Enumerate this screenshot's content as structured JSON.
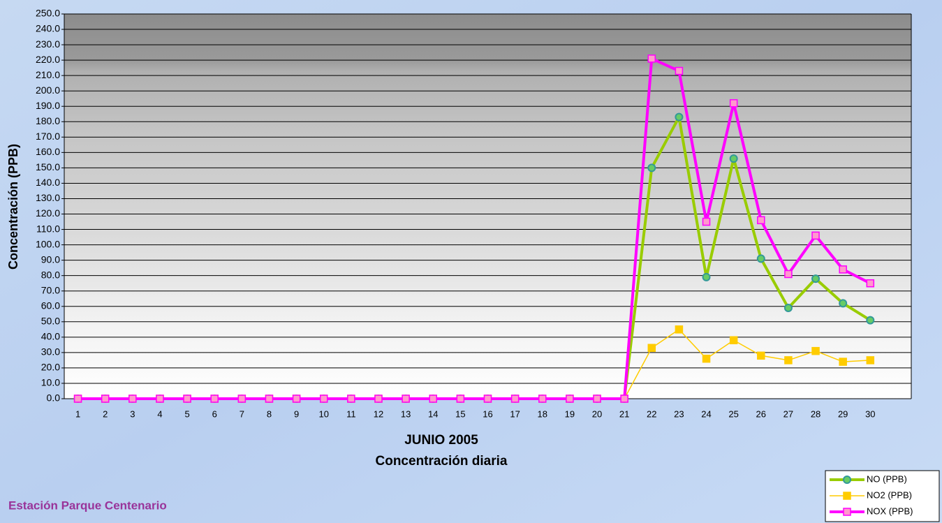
{
  "chart_data": {
    "type": "line",
    "x_label": "JUNIO 2005",
    "subtitle": "Concentración diaria",
    "y_label": "Concentración  (PPB)",
    "footer": "Estación Parque Centenario",
    "categories": [
      "1",
      "2",
      "3",
      "4",
      "5",
      "6",
      "7",
      "8",
      "9",
      "10",
      "11",
      "12",
      "13",
      "14",
      "15",
      "16",
      "17",
      "18",
      "19",
      "20",
      "21",
      "22",
      "23",
      "24",
      "25",
      "26",
      "27",
      "28",
      "29",
      "30",
      null
    ],
    "series": [
      {
        "name": "NO (PPB)",
        "color": "#99cc00",
        "marker": "circle",
        "marker_fill": "#66cc66",
        "marker_stroke": "#339999",
        "width": 4,
        "values": [
          0,
          0,
          0,
          0,
          0,
          0,
          0,
          0,
          0,
          0,
          0,
          0,
          0,
          0,
          0,
          0,
          0,
          0,
          0,
          0,
          0,
          150,
          183,
          79,
          156,
          91,
          59,
          78,
          62,
          51,
          null
        ]
      },
      {
        "name": "NO2 (PPB)",
        "color": "#ffcc00",
        "marker": "square",
        "marker_fill": "#ffcc00",
        "marker_stroke": "#ffcc00",
        "width": 1.5,
        "values": [
          0,
          0,
          0,
          0,
          0,
          0,
          0,
          0,
          0,
          0,
          0,
          0,
          0,
          0,
          0,
          0,
          0,
          0,
          0,
          0,
          0,
          33,
          45,
          26,
          38,
          28,
          25,
          31,
          24,
          25,
          null
        ]
      },
      {
        "name": "NOX (PPB)",
        "color": "#ff00ff",
        "marker": "square",
        "marker_fill": "#ff99cc",
        "marker_stroke": "#ff00ff",
        "width": 4,
        "values": [
          0,
          0,
          0,
          0,
          0,
          0,
          0,
          0,
          0,
          0,
          0,
          0,
          0,
          0,
          0,
          0,
          0,
          0,
          0,
          0,
          0,
          221,
          213,
          115,
          192,
          116,
          81,
          106,
          84,
          75,
          null
        ]
      }
    ],
    "ylim": [
      0,
      250
    ],
    "yticks": [
      {
        "value": 0,
        "label": "0.0"
      },
      {
        "value": 10,
        "label": "10.0"
      },
      {
        "value": 20,
        "label": "20.0"
      },
      {
        "value": 30,
        "label": "30.0"
      },
      {
        "value": 40,
        "label": "40.0"
      },
      {
        "value": 50,
        "label": "50.0"
      },
      {
        "value": 60,
        "label": "60.0"
      },
      {
        "value": 70,
        "label": "70.0"
      },
      {
        "value": 80,
        "label": "80.0"
      },
      {
        "value": 90,
        "label": "90.0"
      },
      {
        "value": 100,
        "label": "100.0"
      },
      {
        "value": 110,
        "label": "110.0"
      },
      {
        "value": 120,
        "label": "120.0"
      },
      {
        "value": 130,
        "label": "130.0"
      },
      {
        "value": 140,
        "label": "140.0"
      },
      {
        "value": 150,
        "label": "150.0"
      },
      {
        "value": 160,
        "label": "160.0"
      },
      {
        "value": 170,
        "label": "170.0"
      },
      {
        "value": 180,
        "label": "180.0"
      },
      {
        "value": 190,
        "label": "190.0"
      },
      {
        "value": 200,
        "label": "200.0"
      },
      {
        "value": 210,
        "label": "210.0"
      },
      {
        "value": 220,
        "label": "220.0"
      },
      {
        "value": 230,
        "label": "230.0"
      },
      {
        "value": 240,
        "label": "240.0"
      },
      {
        "value": 250,
        "label": "250.0"
      }
    ],
    "grid": true,
    "legend": "bottom-right"
  }
}
